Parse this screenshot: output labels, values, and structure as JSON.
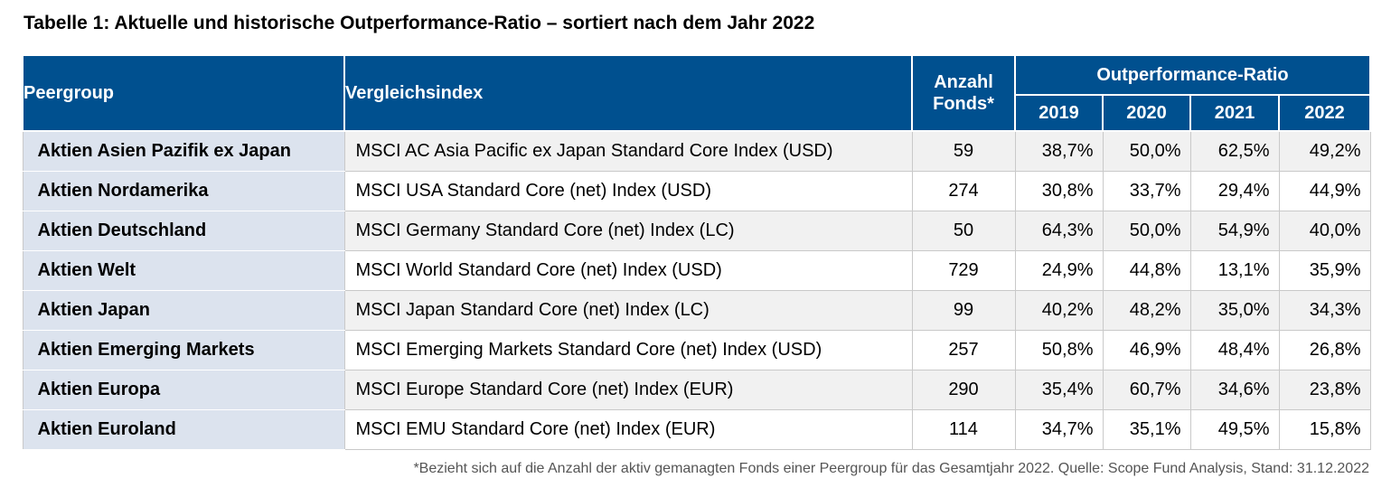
{
  "title": "Tabelle 1: Aktuelle und historische Outperformance-Ratio – sortiert nach dem Jahr 2022",
  "header": {
    "peergroup": "Peergroup",
    "vergleichsindex": "Vergleichsindex",
    "anzahl_line1": "Anzahl",
    "anzahl_line2": "Fonds*",
    "outperformance": "Outperformance-Ratio",
    "years": [
      "2019",
      "2020",
      "2021",
      "2022"
    ]
  },
  "rows": [
    {
      "peergroup": "Aktien Asien Pazifik ex Japan",
      "index": "MSCI AC Asia Pacific ex Japan Standard Core Index (USD)",
      "count": "59",
      "y2019": "38,7%",
      "y2020": "50,0%",
      "y2021": "62,5%",
      "y2022": "49,2%"
    },
    {
      "peergroup": "Aktien Nordamerika",
      "index": "MSCI USA Standard Core (net) Index (USD)",
      "count": "274",
      "y2019": "30,8%",
      "y2020": "33,7%",
      "y2021": "29,4%",
      "y2022": "44,9%"
    },
    {
      "peergroup": "Aktien Deutschland",
      "index": "MSCI Germany Standard Core (net) Index (LC)",
      "count": "50",
      "y2019": "64,3%",
      "y2020": "50,0%",
      "y2021": "54,9%",
      "y2022": "40,0%"
    },
    {
      "peergroup": "Aktien Welt",
      "index": "MSCI World Standard Core (net) Index (USD)",
      "count": "729",
      "y2019": "24,9%",
      "y2020": "44,8%",
      "y2021": "13,1%",
      "y2022": "35,9%"
    },
    {
      "peergroup": "Aktien Japan",
      "index": "MSCI Japan Standard Core (net) Index (LC)",
      "count": "99",
      "y2019": "40,2%",
      "y2020": "48,2%",
      "y2021": "35,0%",
      "y2022": "34,3%"
    },
    {
      "peergroup": "Aktien Emerging Markets",
      "index": "MSCI Emerging Markets Standard Core (net) Index (USD)",
      "count": "257",
      "y2019": "50,8%",
      "y2020": "46,9%",
      "y2021": "48,4%",
      "y2022": "26,8%"
    },
    {
      "peergroup": "Aktien Europa",
      "index": "MSCI Europe Standard Core (net) Index (EUR)",
      "count": "290",
      "y2019": "35,4%",
      "y2020": "60,7%",
      "y2021": "34,6%",
      "y2022": "23,8%"
    },
    {
      "peergroup": "Aktien Euroland",
      "index": "MSCI EMU Standard Core (net) Index (EUR)",
      "count": "114",
      "y2019": "34,7%",
      "y2020": "35,1%",
      "y2021": "49,5%",
      "y2022": "15,8%"
    }
  ],
  "footnote": "*Bezieht sich auf die Anzahl der aktiv gemanagten Fonds einer Peergroup für das Gesamtjahr 2022. Quelle: Scope Fund Analysis, Stand: 31.12.2022",
  "colors": {
    "header_bg": "#00508f",
    "peer_bg": "#dce3ee",
    "row_alt_bg": "#f1f1f1"
  }
}
